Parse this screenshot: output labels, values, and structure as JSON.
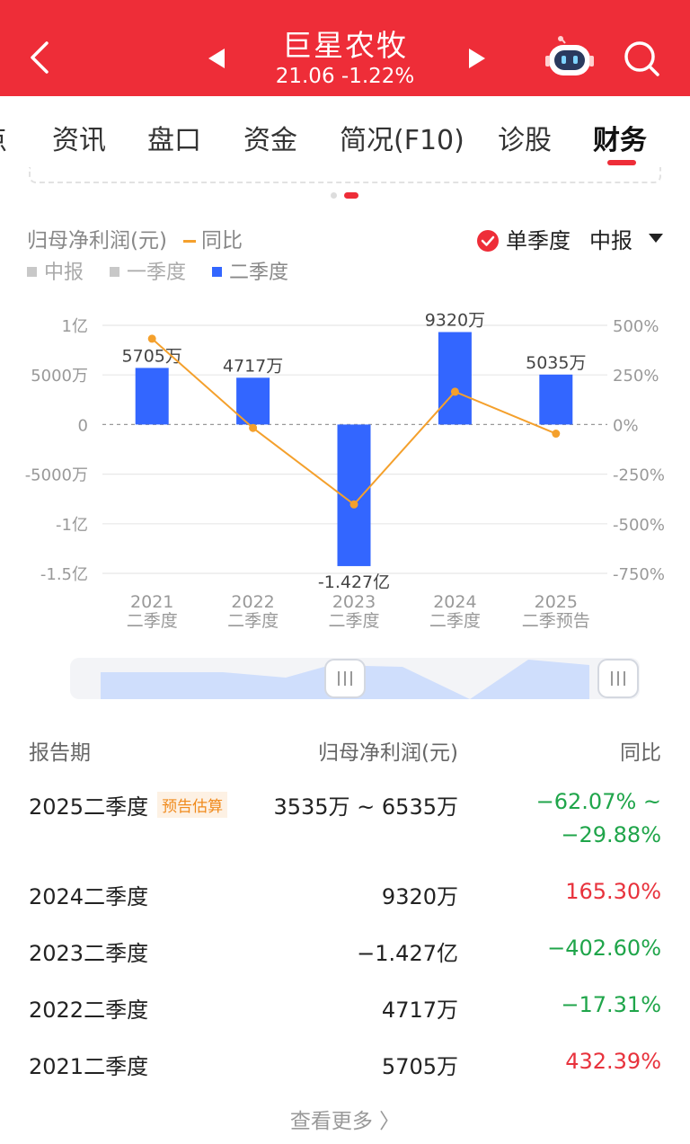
{
  "header": {
    "stock_name": "巨星农牧",
    "quote": "21.06  -1.22%",
    "icons": {
      "back": "chevron-left-icon",
      "prev": "triangle-left-icon",
      "next": "triangle-right-icon",
      "assistant": "robot-icon",
      "search": "search-icon"
    }
  },
  "tabs": [
    {
      "label": "点"
    },
    {
      "label": "资讯"
    },
    {
      "label": "盘口"
    },
    {
      "label": "资金"
    },
    {
      "label": "简况(F10)"
    },
    {
      "label": "诊股"
    },
    {
      "label": "财务"
    }
  ],
  "active_tab": "财务",
  "chart_header": {
    "metric": "归母净利润(元)",
    "yoy_label": "同比",
    "season_toggle": "单季度",
    "period_select": "中报",
    "legend": [
      "中报",
      "一季度",
      "二季度"
    ]
  },
  "colors": {
    "brand": "#ee2d38",
    "bar": "#3366ff",
    "line": "#f4a02c",
    "up": "#e8323c",
    "down": "#1fa54a"
  },
  "chart_data": {
    "type": "bar",
    "categories": [
      "2021\n二季度",
      "2022\n二季度",
      "2023\n二季度",
      "2024\n二季度",
      "2025\n二季预告"
    ],
    "series": [
      {
        "name": "二季度",
        "values": [
          57050000,
          47170000,
          -142700000,
          93200000,
          50350000
        ],
        "labels": [
          "5705万",
          "4717万",
          "-1.427亿",
          "9320万",
          "5035万"
        ]
      },
      {
        "name": "同比",
        "type": "line",
        "values": [
          432.39,
          -17.31,
          -402.6,
          165.3,
          -45.98
        ]
      }
    ],
    "ylim": [
      -150000000,
      100000000
    ],
    "y_ticks": [
      {
        "v": 100000000,
        "label": "1亿"
      },
      {
        "v": 50000000,
        "label": "5000万"
      },
      {
        "v": 0,
        "label": "0"
      },
      {
        "v": -50000000,
        "label": "-5000万"
      },
      {
        "v": -100000000,
        "label": "-1亿"
      },
      {
        "v": -150000000,
        "label": "-1.5亿"
      }
    ],
    "y2lim": [
      -750,
      500
    ],
    "y2_ticks": [
      {
        "v": 500,
        "label": "500%"
      },
      {
        "v": 250,
        "label": "250%"
      },
      {
        "v": 0,
        "label": "0%"
      },
      {
        "v": -250,
        "label": "-250%"
      },
      {
        "v": -500,
        "label": "-500%"
      },
      {
        "v": -750,
        "label": "-750%"
      }
    ],
    "grid": true
  },
  "table": {
    "headers": {
      "period": "报告期",
      "value": "归母净利润(元)",
      "yoy": "同比"
    },
    "rows": [
      {
        "period": "2025二季度",
        "badge": "预告估算",
        "value": "3535万 ~ 6535万",
        "yoy": "−62.07% ~",
        "yoy2": "−29.88%",
        "dir": "down"
      },
      {
        "period": "2024二季度",
        "badge": "",
        "value": "9320万",
        "yoy": "165.30%",
        "yoy2": "",
        "dir": "up"
      },
      {
        "period": "2023二季度",
        "badge": "",
        "value": "−1.427亿",
        "yoy": "−402.60%",
        "yoy2": "",
        "dir": "down"
      },
      {
        "period": "2022二季度",
        "badge": "",
        "value": "4717万",
        "yoy": "−17.31%",
        "yoy2": "",
        "dir": "down"
      },
      {
        "period": "2021二季度",
        "badge": "",
        "value": "5705万",
        "yoy": "432.39%",
        "yoy2": "",
        "dir": "up"
      }
    ],
    "more": "查看更多 〉"
  }
}
